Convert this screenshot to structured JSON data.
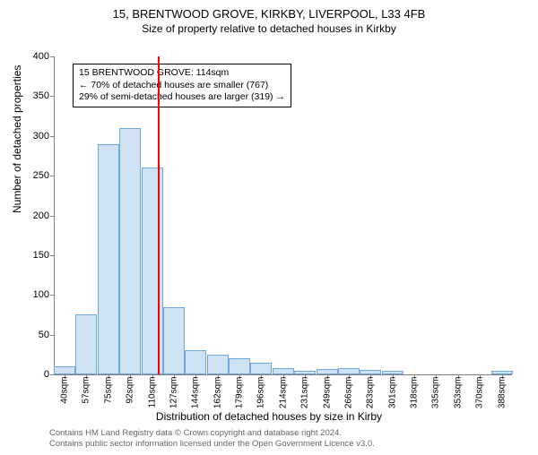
{
  "title": "15, BRENTWOOD GROVE, KIRKBY, LIVERPOOL, L33 4FB",
  "subtitle": "Size of property relative to detached houses in Kirkby",
  "y_axis_label": "Number of detached properties",
  "x_axis_label": "Distribution of detached houses by size in Kirby",
  "footer_line1": "Contains HM Land Registry data © Crown copyright and database right 2024.",
  "footer_line2": "Contains public sector information licensed under the Open Government Licence v3.0.",
  "annotation": {
    "line1": "15 BRENTWOOD GROVE: 114sqm",
    "line2": "← 70% of detached houses are smaller (767)",
    "line3": "29% of semi-detached houses are larger (319) →"
  },
  "chart": {
    "type": "bar",
    "ylim": [
      0,
      400
    ],
    "ytick_step": 50,
    "bar_fill": "#cfe2f3",
    "bar_border": "#6fa8dc",
    "background": "#ffffff",
    "marker_color": "#ff0000",
    "marker_x": 114,
    "x_min": 32,
    "x_max": 396,
    "bar_width_sqm": 17.3,
    "categories": [
      "40sqm",
      "57sqm",
      "75sqm",
      "92sqm",
      "110sqm",
      "127sqm",
      "144sqm",
      "162sqm",
      "179sqm",
      "196sqm",
      "214sqm",
      "231sqm",
      "249sqm",
      "266sqm",
      "283sqm",
      "301sqm",
      "318sqm",
      "335sqm",
      "353sqm",
      "370sqm",
      "388sqm"
    ],
    "x_centers": [
      40,
      57,
      75,
      92,
      110,
      127,
      144,
      162,
      179,
      196,
      214,
      231,
      249,
      266,
      283,
      301,
      318,
      335,
      353,
      370,
      388
    ],
    "values": [
      10,
      75,
      290,
      310,
      260,
      85,
      30,
      25,
      20,
      15,
      8,
      5,
      7,
      8,
      6,
      4,
      0,
      0,
      0,
      0,
      5
    ]
  }
}
